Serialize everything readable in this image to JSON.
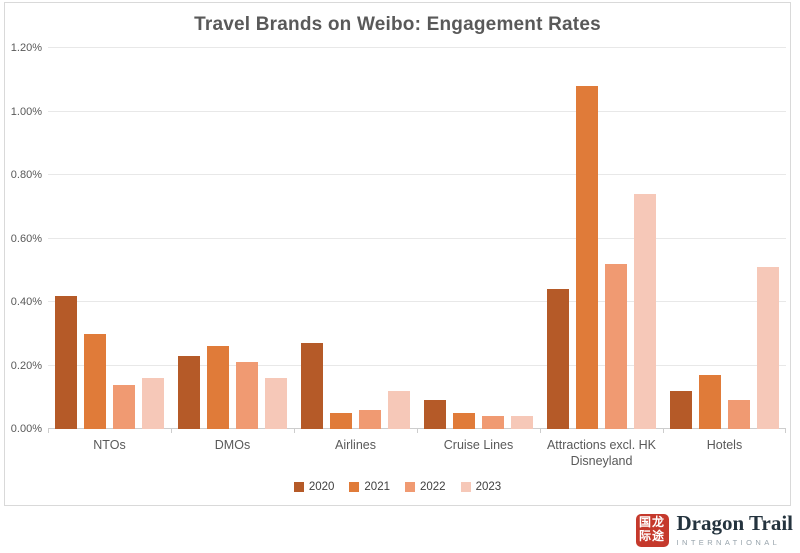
{
  "title": "Travel Brands on Weibo: Engagement Rates",
  "chart_data": {
    "type": "bar",
    "title": "Travel Brands on Weibo: Engagement Rates",
    "categories": [
      "NTOs",
      "DMOs",
      "Airlines",
      "Cruise Lines",
      "Attractions excl. HK Disneyland",
      "Hotels"
    ],
    "series": [
      {
        "name": "2020",
        "color": "#B55A28",
        "values": [
          0.42,
          0.23,
          0.27,
          0.09,
          0.44,
          0.12
        ]
      },
      {
        "name": "2021",
        "color": "#E07B39",
        "values": [
          0.3,
          0.26,
          0.05,
          0.05,
          1.08,
          0.17
        ]
      },
      {
        "name": "2022",
        "color": "#F09A72",
        "values": [
          0.14,
          0.21,
          0.06,
          0.04,
          0.52,
          0.09
        ]
      },
      {
        "name": "2023",
        "color": "#F6C8B8",
        "values": [
          0.16,
          0.16,
          0.12,
          0.04,
          0.74,
          0.51
        ]
      }
    ],
    "xlabel": "",
    "ylabel": "",
    "ylim": [
      0,
      1.2
    ],
    "ytick_step": 0.2,
    "ytick_labels": [
      "0.00%",
      "0.20%",
      "0.40%",
      "0.60%",
      "0.80%",
      "1.00%",
      "1.20%"
    ],
    "grid": true,
    "legend_position": "bottom"
  },
  "logo": {
    "seal_row1": "国龙",
    "seal_row2": "际途",
    "seal_color": "#C5392C",
    "name": "Dragon Trail",
    "subtitle": "INTERNATIONAL"
  }
}
